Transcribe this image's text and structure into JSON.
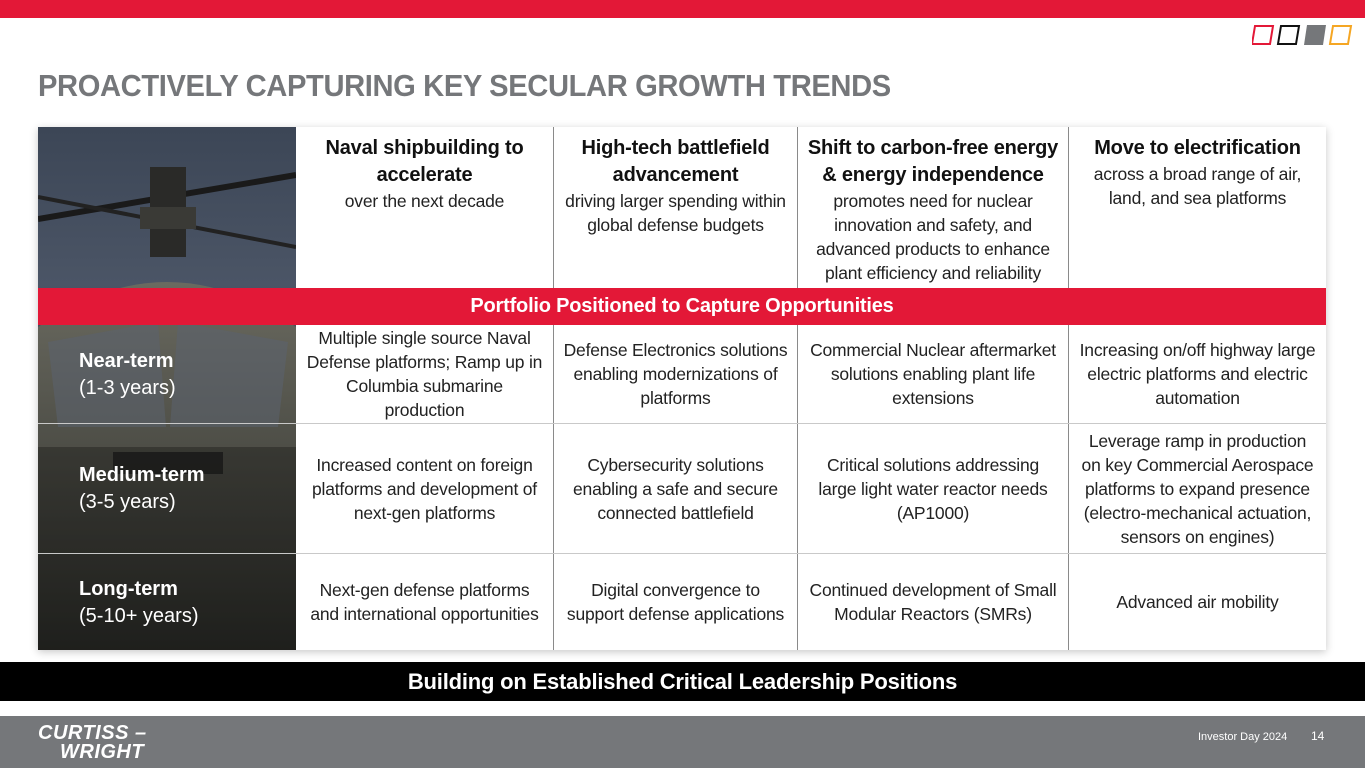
{
  "title": "PROACTIVELY CAPTURING KEY SECULAR GROWTH TRENDS",
  "brand_colors": {
    "red": "#e31837",
    "gray": "#75777a",
    "black": "#000000"
  },
  "columns": [
    {
      "heading": "Naval shipbuilding to accelerate",
      "sub": "over the next decade"
    },
    {
      "heading": "High-tech battlefield advancement",
      "sub": "driving larger spending within global defense budgets"
    },
    {
      "heading": "Shift to carbon-free energy & energy independence",
      "sub": "promotes need for nuclear innovation and safety, and advanced products to enhance plant efficiency and reliability"
    },
    {
      "heading": "Move to electrification",
      "sub": "across a broad range of air, land, and sea platforms"
    }
  ],
  "portfolio_band": "Portfolio Positioned to Capture Opportunities",
  "rows": [
    {
      "term": "Near-term",
      "years": "(1-3 years)",
      "cells": [
        "Multiple single source Naval Defense platforms; Ramp up in Columbia submarine production",
        "Defense Electronics solutions enabling modernizations of platforms",
        "Commercial Nuclear aftermarket solutions enabling plant life extensions",
        "Increasing on/off highway large electric platforms and electric automation"
      ]
    },
    {
      "term": "Medium-term",
      "years": "(3-5 years)",
      "cells": [
        "Increased content on foreign platforms and development of next-gen platforms",
        "Cybersecurity solutions enabling a safe and secure connected battlefield",
        "Critical solutions addressing large light water reactor needs (AP1000)",
        "Leverage ramp in production on key Commercial Aerospace platforms to expand presence (electro-mechanical actuation, sensors on engines)"
      ]
    },
    {
      "term": "Long-term",
      "years": "(5-10+ years)",
      "cells": [
        "Next-gen defense platforms and international opportunities",
        "Digital convergence to support defense applications",
        "Continued development of Small Modular Reactors (SMRs)",
        "Advanced air mobility"
      ]
    }
  ],
  "bottom_band": "Building on Established Critical Leadership Positions",
  "footer": {
    "brand_line1": "CURTISS –",
    "brand_line2": "WRIGHT",
    "note": "Investor Day 2024",
    "page": "14"
  }
}
